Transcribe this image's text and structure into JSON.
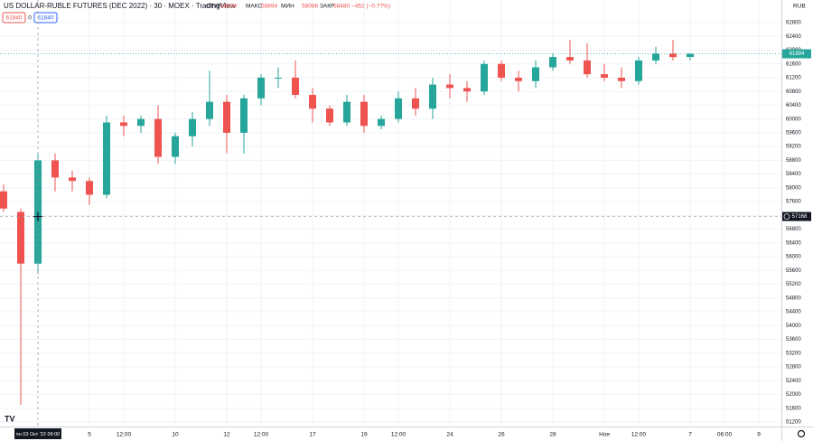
{
  "chart_data": {
    "type": "candlestick",
    "title": "US DOLLAR-RUBLE FUTURES (DEC 2022) · 30 · MOEX · TradingView",
    "currency": "RUB",
    "legend": {
      "open_label": "ОТКР",
      "open": 58894,
      "high_label": "МАКС",
      "high": 58894,
      "low_label": "МИН",
      "low": 58086,
      "close_label": "ЗАКР",
      "close": 58480,
      "change_label": "−452 (−0.77%)"
    },
    "order_boxes": {
      "sell": 61840,
      "qty": 0,
      "buy": 61840
    },
    "up_color": "#26a69a",
    "down_color": "#ef5350",
    "categories": [
      null,
      null,
      null,
      null,
      null,
      "5",
      null,
      "12:00",
      null,
      null,
      "10",
      null,
      null,
      "12",
      null,
      "12:00",
      null,
      null,
      "17",
      null,
      null,
      "19",
      null,
      "12:00",
      null,
      null,
      "24",
      null,
      null,
      "26",
      null,
      null,
      "28",
      null,
      null,
      "Ноя",
      null,
      "12:00",
      null,
      null,
      "7",
      null,
      "06:00",
      null,
      "9"
    ],
    "open": [
      57900,
      57300,
      55800,
      58800,
      58300,
      58200,
      57800,
      59900,
      59800,
      60000,
      58900,
      59500,
      60000,
      60500,
      59600,
      60600,
      61200,
      61200,
      60700,
      60300,
      59900,
      60500,
      59800,
      60000,
      60600,
      60300,
      61000,
      60900,
      60800,
      61600,
      61200,
      61100,
      61500,
      61800,
      61700,
      61300,
      61200,
      61100,
      61700,
      61900,
      61800,
      null,
      null,
      null,
      null
    ],
    "high": [
      58100,
      57400,
      59000,
      59000,
      58500,
      58300,
      60100,
      60100,
      60100,
      60400,
      59600,
      60200,
      61400,
      60700,
      60700,
      61300,
      61500,
      61700,
      60900,
      60400,
      60700,
      60700,
      60100,
      60800,
      60900,
      61200,
      61300,
      61100,
      61700,
      61700,
      61400,
      61700,
      61900,
      62300,
      62200,
      61600,
      61500,
      61800,
      62100,
      62300,
      61900,
      null,
      null,
      null,
      null
    ],
    "low": [
      57300,
      51700,
      55500,
      57900,
      57900,
      57500,
      57700,
      59500,
      59600,
      58700,
      58700,
      59200,
      59800,
      59000,
      59000,
      60400,
      60900,
      60600,
      59900,
      59800,
      59800,
      59600,
      59700,
      59900,
      60100,
      60000,
      60600,
      60500,
      60700,
      61100,
      60800,
      60900,
      61400,
      61600,
      61200,
      61100,
      60900,
      61000,
      61600,
      61700,
      61700,
      null,
      null,
      null,
      null
    ],
    "close": [
      57400,
      55800,
      58800,
      58300,
      58200,
      57800,
      59900,
      59800,
      60000,
      58900,
      59500,
      60000,
      60500,
      59600,
      60600,
      61200,
      61200,
      60700,
      60300,
      59900,
      60500,
      59800,
      60000,
      60600,
      60300,
      61000,
      60900,
      60800,
      61600,
      61200,
      61100,
      61500,
      61800,
      61700,
      61300,
      61200,
      61100,
      61700,
      61900,
      61800,
      61894,
      null,
      null,
      null,
      null
    ],
    "ylim": [
      51068,
      63456
    ],
    "yticks": [
      51200,
      51600,
      52000,
      52400,
      52800,
      53200,
      53600,
      54000,
      54400,
      54800,
      55200,
      55600,
      56000,
      56400,
      56800,
      57200,
      57600,
      58000,
      58400,
      58800,
      59200,
      59600,
      60000,
      60400,
      60800,
      61200,
      61600,
      62000,
      62400,
      62800
    ],
    "last_price": 61894,
    "crosshair": {
      "price": 57168,
      "time_label": "пн 03 Окт '22   09:00"
    },
    "grid": true
  }
}
